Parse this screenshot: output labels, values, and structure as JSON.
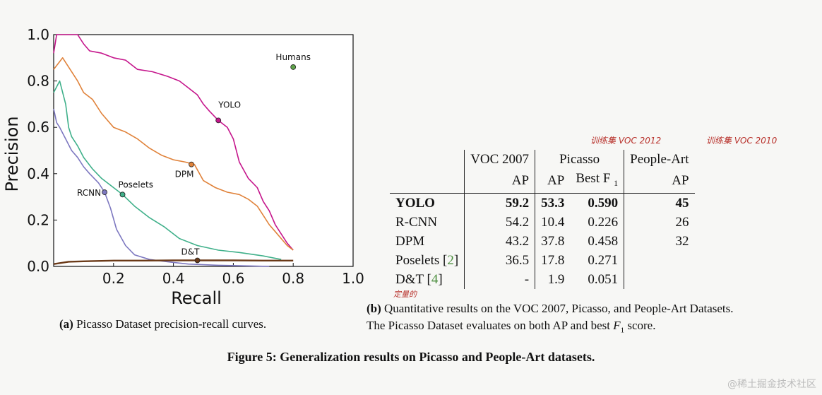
{
  "chart_data": {
    "type": "line",
    "xlabel": "Recall",
    "ylabel": "Precision",
    "xlim": [
      0,
      1.0
    ],
    "ylim": [
      0,
      1.0
    ],
    "xticks": [
      "0.2",
      "0.4",
      "0.6",
      "0.8",
      "1.0"
    ],
    "yticks": [
      "0.0",
      "0.2",
      "0.4",
      "0.6",
      "0.8",
      "1.0"
    ],
    "series": [
      {
        "name": "YOLO",
        "color": "#c5168c",
        "x": [
          0.0,
          0.01,
          0.08,
          0.1,
          0.12,
          0.16,
          0.2,
          0.24,
          0.28,
          0.33,
          0.38,
          0.42,
          0.45,
          0.48,
          0.5,
          0.52,
          0.55,
          0.58,
          0.6,
          0.62,
          0.65,
          0.68,
          0.7,
          0.72,
          0.74,
          0.76,
          0.78,
          0.8
        ],
        "y": [
          0.92,
          1.0,
          1.0,
          0.96,
          0.93,
          0.92,
          0.9,
          0.89,
          0.85,
          0.84,
          0.82,
          0.8,
          0.77,
          0.74,
          0.7,
          0.67,
          0.63,
          0.6,
          0.55,
          0.45,
          0.38,
          0.34,
          0.28,
          0.24,
          0.18,
          0.14,
          0.1,
          0.07
        ],
        "point": [
          0.55,
          0.63
        ],
        "label": "YOLO"
      },
      {
        "name": "DPM",
        "color": "#e0823a",
        "x": [
          0.0,
          0.03,
          0.05,
          0.08,
          0.1,
          0.13,
          0.16,
          0.2,
          0.24,
          0.28,
          0.32,
          0.36,
          0.4,
          0.44,
          0.47,
          0.5,
          0.54,
          0.58,
          0.62,
          0.65,
          0.68,
          0.7,
          0.72,
          0.74,
          0.76,
          0.78,
          0.8
        ],
        "y": [
          0.85,
          0.9,
          0.86,
          0.8,
          0.75,
          0.72,
          0.66,
          0.6,
          0.58,
          0.55,
          0.51,
          0.48,
          0.46,
          0.45,
          0.44,
          0.37,
          0.34,
          0.32,
          0.31,
          0.29,
          0.26,
          0.22,
          0.18,
          0.15,
          0.12,
          0.09,
          0.07
        ],
        "point": [
          0.46,
          0.44
        ],
        "label": "DPM"
      },
      {
        "name": "Poselets",
        "color": "#3fb08a",
        "x": [
          0.0,
          0.02,
          0.04,
          0.05,
          0.06,
          0.08,
          0.1,
          0.13,
          0.16,
          0.2,
          0.23,
          0.27,
          0.32,
          0.37,
          0.42,
          0.48,
          0.55,
          0.62,
          0.7,
          0.76
        ],
        "y": [
          0.75,
          0.8,
          0.7,
          0.6,
          0.56,
          0.52,
          0.47,
          0.42,
          0.38,
          0.34,
          0.31,
          0.26,
          0.21,
          0.17,
          0.12,
          0.09,
          0.07,
          0.06,
          0.045,
          0.03
        ],
        "point": [
          0.23,
          0.31
        ],
        "label": "Poselets"
      },
      {
        "name": "RCNN",
        "color": "#7d78c0",
        "x": [
          0.0,
          0.01,
          0.02,
          0.04,
          0.06,
          0.08,
          0.1,
          0.12,
          0.15,
          0.17,
          0.19,
          0.21,
          0.24,
          0.27,
          0.32,
          0.38,
          0.45,
          0.55,
          0.65,
          0.72
        ],
        "y": [
          0.68,
          0.62,
          0.6,
          0.55,
          0.5,
          0.47,
          0.43,
          0.4,
          0.36,
          0.32,
          0.25,
          0.16,
          0.09,
          0.05,
          0.03,
          0.02,
          0.01,
          0.005,
          0.002,
          0.0
        ],
        "point": [
          0.17,
          0.32
        ],
        "label": "RCNN"
      },
      {
        "name": "D&T",
        "color": "#6b3a18",
        "x": [
          0.0,
          0.05,
          0.1,
          0.2,
          0.3,
          0.4,
          0.48,
          0.6,
          0.7,
          0.8
        ],
        "y": [
          0.01,
          0.02,
          0.022,
          0.025,
          0.025,
          0.026,
          0.026,
          0.026,
          0.025,
          0.025
        ],
        "point": [
          0.48,
          0.026
        ],
        "label": "D&T"
      }
    ],
    "humans": {
      "x": 0.8,
      "y": 0.86,
      "label": "Humans",
      "color": "#5fa34a"
    }
  },
  "table": {
    "header1": {
      "voc2007": "VOC 2007",
      "picasso": "Picasso",
      "peopleart": "People-Art"
    },
    "header2": {
      "voc_ap": "AP",
      "pic_ap": "AP",
      "pic_f1": "Best F",
      "pic_f1_sub": "1",
      "pa_ap": "AP"
    },
    "rows": [
      {
        "name": "YOLO",
        "voc": "59.2",
        "pic_ap": "53.3",
        "pic_f1": "0.590",
        "pa": "45",
        "ref": "",
        "bold": true
      },
      {
        "name": "R-CNN",
        "voc": "54.2",
        "pic_ap": "10.4",
        "pic_f1": "0.226",
        "pa": "26",
        "ref": "",
        "bold": false
      },
      {
        "name": "DPM",
        "voc": "43.2",
        "pic_ap": "37.8",
        "pic_f1": "0.458",
        "pa": "32",
        "ref": "",
        "bold": false
      },
      {
        "name": "Poselets",
        "voc": "36.5",
        "pic_ap": "17.8",
        "pic_f1": "0.271",
        "pa": "",
        "ref": "2",
        "bold": false
      },
      {
        "name": "D&T",
        "voc": "-",
        "pic_ap": "1.9",
        "pic_f1": "0.051",
        "pa": "",
        "ref": "4",
        "bold": false
      }
    ]
  },
  "captions": {
    "a_label": "(a)",
    "a_text": "Picasso Dataset precision-recall curves.",
    "b_label": "(b)",
    "b_line1": "Quantitative results on the VOC 2007, Picasso, and People-Art Datasets.",
    "b_line2a": "The Picasso Dataset evaluates on both AP and best ",
    "b_line2_f": "F",
    "b_line2_sub": "1",
    "b_line2b": " score.",
    "figure": "Figure 5: Generalization results on Picasso and People-Art datasets."
  },
  "annotations": {
    "picasso": "训练集 VOC 2012",
    "peopleart": "训练集 VOC 2010",
    "quant": "定量的"
  },
  "watermark": "@稀土掘金技术社区"
}
